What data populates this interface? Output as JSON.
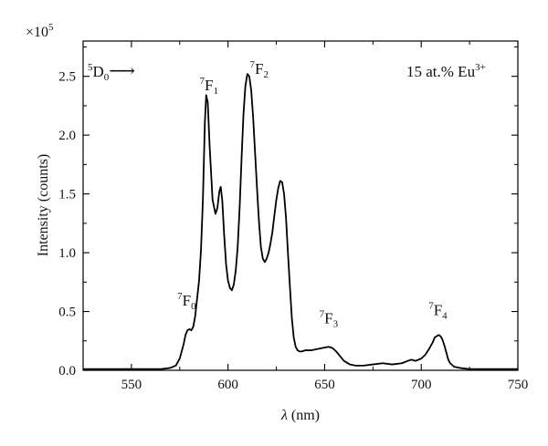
{
  "chart_data": {
    "type": "line",
    "title": "",
    "xlabel_symbol": "λ",
    "xlabel_unit": "(nm)",
    "ylabel": "Intensity (counts)",
    "y_multiplier_base": "×10",
    "y_multiplier_exp": "5",
    "xlim": [
      525,
      750
    ],
    "ylim": [
      0,
      2.8
    ],
    "xticks": [
      550,
      600,
      650,
      700,
      750
    ],
    "yticks": [
      0.0,
      0.5,
      1.0,
      1.5,
      2.0,
      2.5
    ],
    "ytick_labels": [
      "0.0",
      "0.5",
      "1.0",
      "1.5",
      "2.0",
      "2.5"
    ],
    "grid": false,
    "series": [
      {
        "color": "#000000",
        "x": [
          525,
          540,
          555,
          565,
          570,
          573,
          575,
          577,
          578,
          579,
          580,
          581,
          582,
          583,
          585,
          586,
          587,
          588,
          588.7,
          589.5,
          590.5,
          592,
          593.5,
          594.5,
          595.5,
          596.2,
          597,
          598,
          599,
          600,
          601,
          602,
          603,
          604,
          605,
          606,
          607,
          608,
          609,
          610,
          611,
          612,
          613,
          614,
          615,
          616,
          617,
          618,
          619,
          620,
          621,
          622,
          623,
          624,
          625,
          626,
          627,
          628,
          629,
          630,
          631,
          632,
          633,
          634,
          635,
          636,
          637,
          638,
          640,
          643,
          646,
          649,
          652,
          654,
          656,
          658,
          660,
          663,
          666,
          670,
          675,
          680,
          685,
          690,
          693,
          695,
          697,
          700,
          702,
          704,
          706,
          707,
          708,
          709,
          710,
          711,
          712,
          713,
          714,
          715,
          717,
          720,
          725,
          730,
          735,
          740,
          745,
          750
        ],
        "y": [
          0.01,
          0.01,
          0.01,
          0.01,
          0.02,
          0.04,
          0.1,
          0.22,
          0.3,
          0.34,
          0.35,
          0.34,
          0.37,
          0.46,
          0.76,
          1.02,
          1.45,
          2.1,
          2.34,
          2.28,
          1.9,
          1.45,
          1.33,
          1.38,
          1.52,
          1.56,
          1.45,
          1.15,
          0.9,
          0.76,
          0.7,
          0.68,
          0.73,
          0.85,
          1.05,
          1.38,
          1.8,
          2.18,
          2.42,
          2.52,
          2.5,
          2.38,
          2.15,
          1.85,
          1.55,
          1.27,
          1.05,
          0.95,
          0.92,
          0.95,
          1.0,
          1.08,
          1.18,
          1.32,
          1.45,
          1.55,
          1.61,
          1.6,
          1.5,
          1.3,
          1.0,
          0.72,
          0.45,
          0.28,
          0.2,
          0.17,
          0.16,
          0.16,
          0.17,
          0.17,
          0.18,
          0.19,
          0.2,
          0.19,
          0.16,
          0.12,
          0.08,
          0.05,
          0.04,
          0.04,
          0.05,
          0.06,
          0.05,
          0.06,
          0.08,
          0.09,
          0.08,
          0.1,
          0.13,
          0.18,
          0.24,
          0.28,
          0.29,
          0.3,
          0.29,
          0.26,
          0.21,
          0.15,
          0.09,
          0.06,
          0.03,
          0.02,
          0.01,
          0.01,
          0.01,
          0.01,
          0.01,
          0.01
        ]
      }
    ],
    "annotations": [
      {
        "id": "f0",
        "pre": "7",
        "base": "F",
        "sub": "0",
        "x": 578.5,
        "y": 0.55
      },
      {
        "id": "f1",
        "pre": "7",
        "base": "F",
        "sub": "1",
        "x": 590,
        "y": 2.38
      },
      {
        "id": "f2",
        "pre": "7",
        "base": "F",
        "sub": "",
        "sub2": "2",
        "x": 616,
        "y": 2.52
      },
      {
        "id": "f3",
        "pre": "7",
        "base": "F",
        "sub": "3",
        "x": 652,
        "y": 0.4
      },
      {
        "id": "f4",
        "pre": "7",
        "base": "F",
        "sub": "4",
        "x": 708.5,
        "y": 0.47
      }
    ],
    "transition_label": {
      "pre": "5",
      "base": "D",
      "sub": "0",
      "arrow": "⟶"
    },
    "sample_label": {
      "text": "15 at.% Eu",
      "sup": "3+"
    }
  }
}
